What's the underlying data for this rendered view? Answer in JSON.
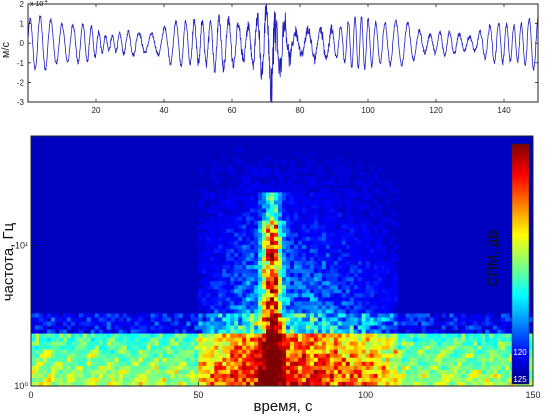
{
  "chart_data": [
    {
      "type": "line",
      "ylabel": "м/с",
      "y_exponent": "x 10",
      "y_exponent_power": "-4",
      "xlim": [
        0,
        150
      ],
      "ylim": [
        -3,
        2
      ],
      "xticks": [
        20,
        40,
        60,
        80,
        100,
        120,
        140
      ],
      "xtick_labels": [
        "20",
        "40",
        "60",
        "80",
        "100",
        "120",
        "140"
      ],
      "yticks": [
        2,
        1,
        0,
        -1,
        -2,
        -3
      ],
      "ytick_labels": [
        "2",
        "1",
        "0",
        "-1",
        "-2",
        "-3"
      ],
      "grid": false,
      "series_color": "#1f1fbf",
      "signal": {
        "description_values": "oscillating vertical velocity record",
        "base_period_s": 3.4,
        "base_amplitude": 1.1,
        "burst_center_s": 72,
        "burst_peak_amplitude": 3.0
      }
    },
    {
      "type": "heatmap",
      "xlabel": "время, с",
      "ylabel": "частота, Гц",
      "colorbar_label": "СПМ, дБ",
      "xlim": [
        0,
        150
      ],
      "ylim": [
        1,
        60
      ],
      "y_scale": "log",
      "xticks": [
        0,
        50,
        100,
        150
      ],
      "xtick_labels": [
        "0",
        "50",
        "100",
        "150"
      ],
      "yticks": [
        1,
        10
      ],
      "ytick_labels": [
        "10⁰",
        "10¹"
      ],
      "colorbar_ticks": [
        "120",
        "125"
      ],
      "colormap": [
        "#00007f",
        "#0000ff",
        "#00ffff",
        "#ffff00",
        "#ff0000",
        "#7f0000"
      ],
      "features": {
        "low_freq_band_hz": [
          1,
          2.4
        ],
        "noise_onset_s": 50,
        "noise_end_s": 110,
        "burst_center_s": 72,
        "burst_top_hz": 15
      }
    }
  ]
}
